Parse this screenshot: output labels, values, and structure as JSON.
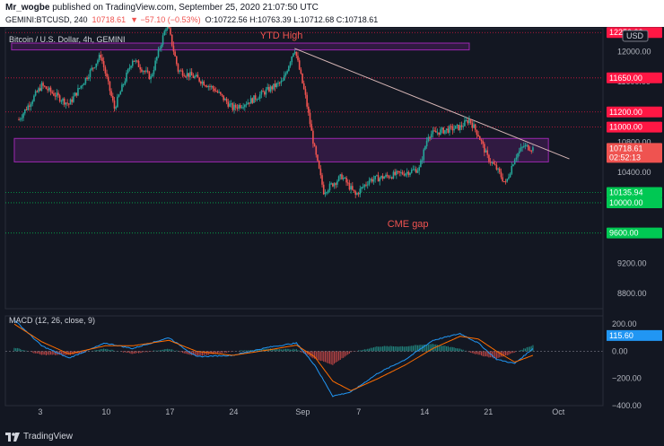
{
  "header": {
    "published": "Mr_wogbe published on TradingView.com, September 25, 2020 21:07:50 UTC",
    "published_user": "Mr_wogbe",
    "published_rest": " published on TradingView.com, September 25, 2020 21:07:50 UTC",
    "symbol": "GEMINI:BTCUSD, 240",
    "last": "10718.61",
    "change": "▼ −57.10 (−0.53%)",
    "ohlc": "O:10722.56 H:10763.39 L:10712.68 C:10718.61"
  },
  "chart_title": "Bitcoin / U.S. Dollar, 4h, GEMINI",
  "currency": "USD",
  "macd_title": "MACD (12, 26, close, 9)",
  "footer": {
    "brand": "TradingView"
  },
  "colors": {
    "background": "#131722",
    "up": "#26a69a",
    "down": "#ef5350",
    "zone": "#9c27b0",
    "red_level": "#ff1744",
    "green_level": "#00c853",
    "macd_line": "#2196f3",
    "signal_line": "#ff6d00"
  },
  "chart_data": [
    {
      "type": "candlestick",
      "title": "Bitcoin / U.S. Dollar, 4h, GEMINI",
      "ylim": [
        8600,
        12300
      ],
      "y_ticks": [
        12000,
        11600,
        11200,
        10800,
        10400,
        9600,
        9200,
        8800
      ],
      "x_ticks": [
        "3",
        "10",
        "17",
        "24",
        "Sep",
        "7",
        "14",
        "21",
        "Oct"
      ],
      "price_labels": [
        {
          "value": 12250,
          "label": "12250.00",
          "color": "#ff1744"
        },
        {
          "value": 11650,
          "label": "11650.00",
          "color": "#ff1744"
        },
        {
          "value": 11200,
          "label": "11200.00",
          "color": "#ff1744"
        },
        {
          "value": 11000,
          "label": "11000.00",
          "color": "#ff1744"
        },
        {
          "value": 10718.61,
          "label": "10718.61",
          "color": "#ef5350"
        },
        {
          "value": 10600,
          "label": "02:52:13",
          "color": "#ef5350"
        },
        {
          "value": 10135.94,
          "label": "10135.94",
          "color": "#00c853"
        },
        {
          "value": 10000,
          "label": "10000.00",
          "color": "#00c853"
        },
        {
          "value": 9600,
          "label": "9600.00",
          "color": "#00c853"
        }
      ],
      "annotations": [
        {
          "text": "YTD High",
          "x_day": 27,
          "y": 12170,
          "color": "#ef5350"
        },
        {
          "text": "CME gap",
          "x_day": 41,
          "y": 9680,
          "color": "#ef5350"
        }
      ],
      "zones": [
        {
          "x_from_day": -0.3,
          "x_to_day": 50,
          "y_from": 12020,
          "y_to": 12110,
          "color": "#9c27b0"
        },
        {
          "x_from_day": 0,
          "x_to_day": 58.7,
          "y_from": 10540,
          "y_to": 10850,
          "color": "#9c27b0"
        }
      ],
      "trendline": {
        "x1_day": 30.8,
        "y1": 12040,
        "x2_day": 61,
        "y2": 10580,
        "color": "#d7b6b6"
      },
      "key_points": [
        {
          "day": 0.5,
          "price": 11100
        },
        {
          "day": 3,
          "price": 11550
        },
        {
          "day": 6,
          "price": 11300
        },
        {
          "day": 9.5,
          "price": 11950
        },
        {
          "day": 11,
          "price": 11250
        },
        {
          "day": 13,
          "price": 11900
        },
        {
          "day": 15,
          "price": 11650
        },
        {
          "day": 16.8,
          "price": 12380
        },
        {
          "day": 18,
          "price": 11750
        },
        {
          "day": 20,
          "price": 11650
        },
        {
          "day": 22,
          "price": 11500
        },
        {
          "day": 24,
          "price": 11250
        },
        {
          "day": 26,
          "price": 11350
        },
        {
          "day": 28,
          "price": 11500
        },
        {
          "day": 29.5,
          "price": 11600
        },
        {
          "day": 30.8,
          "price": 12050
        },
        {
          "day": 32,
          "price": 11400
        },
        {
          "day": 33,
          "price": 10700
        },
        {
          "day": 34,
          "price": 10150
        },
        {
          "day": 36,
          "price": 10350
        },
        {
          "day": 37.5,
          "price": 10100
        },
        {
          "day": 39,
          "price": 10300
        },
        {
          "day": 41,
          "price": 10350
        },
        {
          "day": 43,
          "price": 10400
        },
        {
          "day": 44.5,
          "price": 10450
        },
        {
          "day": 45.5,
          "price": 10900
        },
        {
          "day": 47,
          "price": 10950
        },
        {
          "day": 49,
          "price": 11000
        },
        {
          "day": 50,
          "price": 11100
        },
        {
          "day": 51,
          "price": 10900
        },
        {
          "day": 52,
          "price": 10600
        },
        {
          "day": 53,
          "price": 10450
        },
        {
          "day": 54,
          "price": 10250
        },
        {
          "day": 55,
          "price": 10600
        },
        {
          "day": 56,
          "price": 10750
        },
        {
          "day": 57,
          "price": 10718
        }
      ]
    },
    {
      "type": "macd",
      "title": "MACD (12, 26, close, 9)",
      "ylim": [
        -400,
        260
      ],
      "y_ticks": [
        200,
        0,
        -200,
        -400
      ],
      "value_label": "115.60",
      "key_points_macd": [
        {
          "day": 0,
          "value": 230
        },
        {
          "day": 3,
          "value": 40
        },
        {
          "day": 6,
          "value": -50
        },
        {
          "day": 10,
          "value": 60
        },
        {
          "day": 13,
          "value": 20
        },
        {
          "day": 17,
          "value": 100
        },
        {
          "day": 20,
          "value": -40
        },
        {
          "day": 24,
          "value": -30
        },
        {
          "day": 28,
          "value": 30
        },
        {
          "day": 31,
          "value": 60
        },
        {
          "day": 33,
          "value": -100
        },
        {
          "day": 35,
          "value": -330
        },
        {
          "day": 37,
          "value": -300
        },
        {
          "day": 40,
          "value": -160
        },
        {
          "day": 43,
          "value": -60
        },
        {
          "day": 46,
          "value": 80
        },
        {
          "day": 49,
          "value": 130
        },
        {
          "day": 51,
          "value": 60
        },
        {
          "day": 53,
          "value": -60
        },
        {
          "day": 55,
          "value": -90
        },
        {
          "day": 57,
          "value": 20
        }
      ],
      "key_points_signal": [
        {
          "day": 0,
          "value": 200
        },
        {
          "day": 3,
          "value": 70
        },
        {
          "day": 6,
          "value": -20
        },
        {
          "day": 10,
          "value": 40
        },
        {
          "day": 13,
          "value": 40
        },
        {
          "day": 17,
          "value": 80
        },
        {
          "day": 20,
          "value": 0
        },
        {
          "day": 24,
          "value": -30
        },
        {
          "day": 28,
          "value": 10
        },
        {
          "day": 31,
          "value": 45
        },
        {
          "day": 33,
          "value": -40
        },
        {
          "day": 35,
          "value": -220
        },
        {
          "day": 37,
          "value": -290
        },
        {
          "day": 40,
          "value": -200
        },
        {
          "day": 43,
          "value": -100
        },
        {
          "day": 46,
          "value": 20
        },
        {
          "day": 49,
          "value": 110
        },
        {
          "day": 51,
          "value": 90
        },
        {
          "day": 53,
          "value": 0
        },
        {
          "day": 55,
          "value": -80
        },
        {
          "day": 57,
          "value": -30
        }
      ]
    }
  ]
}
